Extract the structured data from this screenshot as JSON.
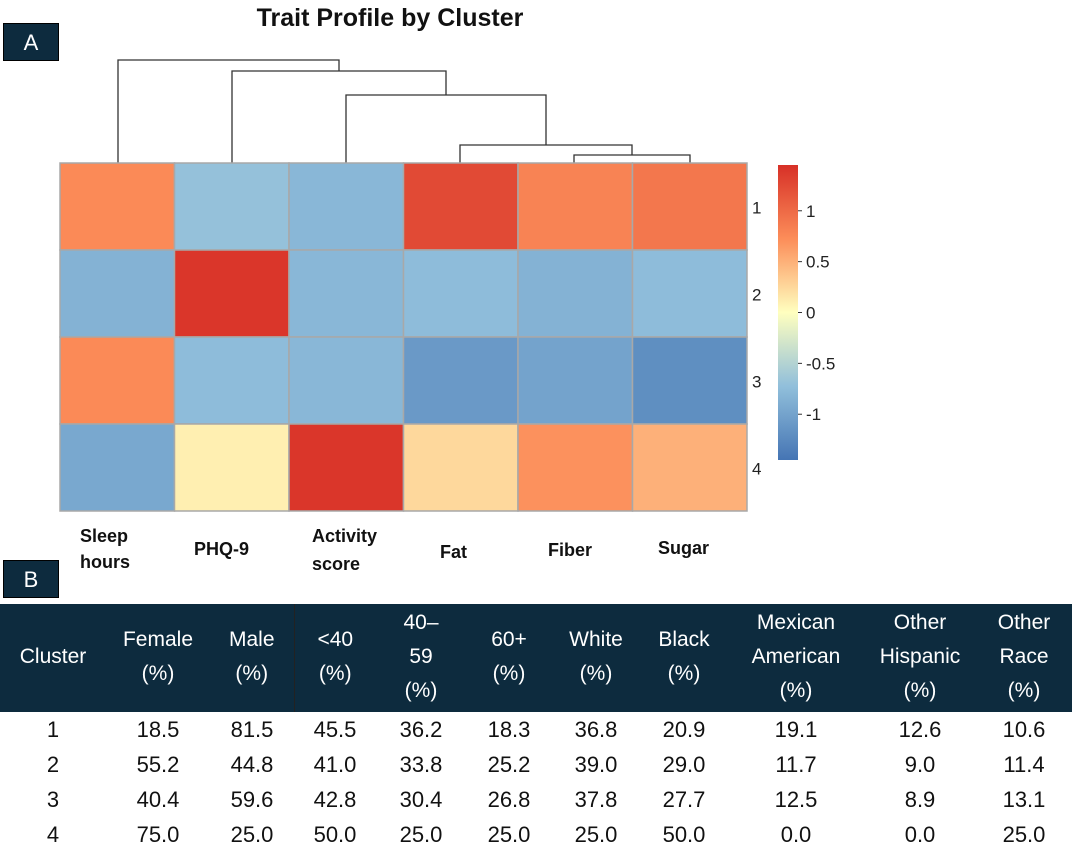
{
  "panels": {
    "a": "A",
    "b": "B"
  },
  "chart_data": {
    "type": "heatmap",
    "title": "Trait Profile by Cluster",
    "columns": [
      "Sleep hours",
      "PHQ-9",
      "Activity score",
      "Fat",
      "Fiber",
      "Sugar"
    ],
    "column_label_lines": [
      [
        "Sleep",
        "hours"
      ],
      [
        "PHQ-9"
      ],
      [
        "Activity",
        "score"
      ],
      [
        "Fat"
      ],
      [
        "Fiber"
      ],
      [
        "Sugar"
      ]
    ],
    "rows": [
      "1",
      "2",
      "3",
      "4"
    ],
    "values": [
      [
        0.75,
        -0.7,
        -0.8,
        1.25,
        0.8,
        0.9
      ],
      [
        -0.85,
        1.4,
        -0.8,
        -0.75,
        -0.85,
        -0.75
      ],
      [
        0.75,
        -0.75,
        -0.8,
        -1.1,
        -1.0,
        -1.2
      ],
      [
        -0.95,
        0.1,
        1.4,
        0.25,
        0.7,
        0.5
      ]
    ],
    "color_scale": {
      "min": -1.45,
      "max": 1.45,
      "low": "#4575b4",
      "mid": "#ffffbf",
      "high": "#d73027"
    },
    "legend_ticks": [
      {
        "value": 1,
        "label": "1"
      },
      {
        "value": 0.5,
        "label": "0.5"
      },
      {
        "value": 0,
        "label": "0"
      },
      {
        "value": -0.5,
        "label": "-0.5"
      },
      {
        "value": -1,
        "label": "-1"
      }
    ],
    "legend_placement": "right"
  },
  "table": {
    "header_lines": [
      [
        "Cluster"
      ],
      [
        "Female",
        "(%)"
      ],
      [
        "Male",
        "(%)"
      ],
      [
        "<40",
        "(%)"
      ],
      [
        "40–",
        "59",
        "(%)"
      ],
      [
        "60+",
        "(%)"
      ],
      [
        "White",
        "(%)"
      ],
      [
        "Black",
        "(%)"
      ],
      [
        "Mexican",
        "American",
        "(%)"
      ],
      [
        "Other",
        "Hispanic",
        "(%)"
      ],
      [
        "Other",
        "Race",
        "(%)"
      ]
    ],
    "rows": [
      [
        "1",
        "18.5",
        "81.5",
        "45.5",
        "36.2",
        "18.3",
        "36.8",
        "20.9",
        "19.1",
        "12.6",
        "10.6"
      ],
      [
        "2",
        "55.2",
        "44.8",
        "41.0",
        "33.8",
        "25.2",
        "39.0",
        "29.0",
        "11.7",
        "9.0",
        "11.4"
      ],
      [
        "3",
        "40.4",
        "59.6",
        "42.8",
        "30.4",
        "26.8",
        "37.8",
        "27.7",
        "12.5",
        "8.9",
        "13.1"
      ],
      [
        "4",
        "75.0",
        "25.0",
        "50.0",
        "25.0",
        "25.0",
        "25.0",
        "50.0",
        "0.0",
        "0.0",
        "25.0"
      ]
    ]
  }
}
